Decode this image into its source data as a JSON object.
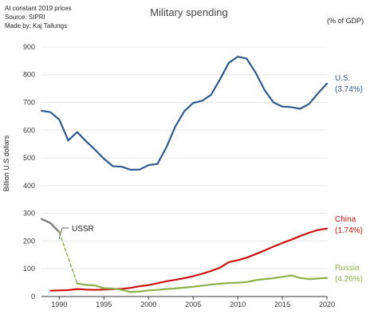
{
  "notes": {
    "line1": "At constant 2019 prices",
    "line2": "Source: SIPRI",
    "line3": "Made by: Kaj Tallungs"
  },
  "chart_data": {
    "type": "line",
    "title": "Military spending",
    "unit_label": "(% of GDP)",
    "ylabel": "Billion U.S dollars",
    "xlabel": "",
    "xlim": [
      1988,
      2020
    ],
    "ylim": [
      0,
      920
    ],
    "x_ticks": [
      1990,
      1995,
      2000,
      2005,
      2010,
      2015,
      2020
    ],
    "y_ticks": [
      0,
      100,
      200,
      300,
      400,
      500,
      600,
      700,
      800,
      900
    ],
    "grid": "horizontal",
    "series": [
      {
        "name": "U.S.",
        "label_line1": "U.S.",
        "label_line2": "(3.74%)",
        "color": "#2e5a8c",
        "x": [
          1988,
          1989,
          1990,
          1991,
          1992,
          1993,
          1994,
          1995,
          1996,
          1997,
          1998,
          1999,
          2000,
          2001,
          2002,
          2003,
          2004,
          2005,
          2006,
          2007,
          2008,
          2009,
          2010,
          2011,
          2012,
          2013,
          2014,
          2015,
          2016,
          2017,
          2018,
          2019,
          2020
        ],
        "values": [
          670,
          665,
          638,
          563,
          593,
          560,
          530,
          497,
          470,
          468,
          457,
          458,
          474,
          478,
          538,
          613,
          668,
          698,
          706,
          727,
          783,
          843,
          865,
          858,
          808,
          745,
          700,
          685,
          683,
          677,
          695,
          733,
          768
        ]
      },
      {
        "name": "USSR",
        "label_line1": "USSR",
        "color": "#777777",
        "x": [
          1988,
          1989,
          1990
        ],
        "values": [
          280,
          265,
          232
        ]
      },
      {
        "name": "USSR to Russia (dashed)",
        "color": "#8fb04a",
        "x": [
          1990,
          1992
        ],
        "values": [
          232,
          47
        ]
      },
      {
        "name": "China",
        "label_line1": "China",
        "label_line2": "(1.74%)",
        "color": "#cc1111",
        "x": [
          1989,
          1990,
          1991,
          1992,
          1993,
          1994,
          1995,
          1996,
          1997,
          1998,
          1999,
          2000,
          2001,
          2002,
          2003,
          2004,
          2005,
          2006,
          2007,
          2008,
          2009,
          2010,
          2011,
          2012,
          2013,
          2014,
          2015,
          2016,
          2017,
          2018,
          2019,
          2020
        ],
        "values": [
          21,
          22,
          23,
          27,
          25,
          24,
          25,
          27,
          28,
          31,
          37,
          41,
          48,
          55,
          60,
          66,
          73,
          82,
          92,
          104,
          124,
          131,
          140,
          153,
          166,
          180,
          193,
          205,
          218,
          230,
          240,
          245
        ]
      },
      {
        "name": "Russia",
        "label_line1": "Russia",
        "label_line2": "(4.26%)",
        "color": "#8fb04a",
        "x": [
          1992,
          1993,
          1994,
          1995,
          1996,
          1997,
          1998,
          1999,
          2000,
          2001,
          2002,
          2003,
          2004,
          2005,
          2006,
          2007,
          2008,
          2009,
          2010,
          2011,
          2012,
          2013,
          2014,
          2015,
          2016,
          2017,
          2018,
          2019,
          2020
        ],
        "values": [
          47,
          42,
          40,
          30,
          29,
          24,
          16,
          18,
          22,
          24,
          27,
          29,
          32,
          35,
          39,
          43,
          46,
          49,
          50,
          52,
          59,
          63,
          66,
          71,
          76,
          67,
          63,
          65,
          67
        ]
      }
    ]
  }
}
